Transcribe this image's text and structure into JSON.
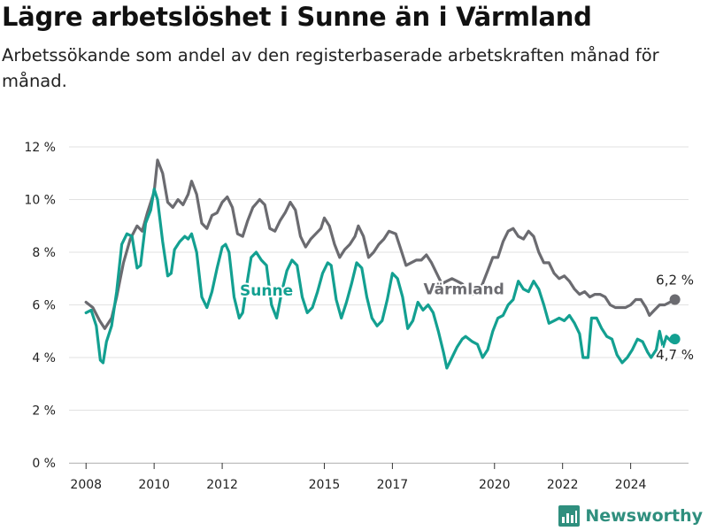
{
  "title": "Lägre arbetslöshet i Sunne än i Värmland",
  "subtitle": "Arbetssökande som andel av den registerbaserade arbetskraften månad för månad.",
  "brand": {
    "name": "Newsworthy",
    "icon": "newsworthy-chart-icon",
    "color": "#2f8f7e"
  },
  "chart_data": {
    "type": "line",
    "title": "Lägre arbetslöshet i Sunne än i Värmland",
    "subtitle": "Arbetssökande som andel av den registerbaserade arbetskraften månad för månad.",
    "xlabel": "",
    "ylabel": "",
    "xlim": [
      2007.5,
      2025.7
    ],
    "ylim": [
      0,
      12
    ],
    "grid": true,
    "legend": "inline labels",
    "x_ticks": [
      {
        "value": 2008,
        "label": "2008"
      },
      {
        "value": 2010,
        "label": "2010"
      },
      {
        "value": 2012,
        "label": "2012"
      },
      {
        "value": 2015,
        "label": "2015"
      },
      {
        "value": 2017,
        "label": "2017"
      },
      {
        "value": 2020,
        "label": "2020"
      },
      {
        "value": 2022,
        "label": "2022"
      },
      {
        "value": 2024,
        "label": "2024"
      }
    ],
    "y_ticks": [
      {
        "value": 0,
        "label": "0 %"
      },
      {
        "value": 2,
        "label": "2 %"
      },
      {
        "value": 4,
        "label": "4 %"
      },
      {
        "value": 6,
        "label": "6 %"
      },
      {
        "value": 8,
        "label": "8 %"
      },
      {
        "value": 10,
        "label": "10 %"
      },
      {
        "value": 12,
        "label": "12 %"
      }
    ],
    "series": [
      {
        "name": "Värmland",
        "color": "#6b6b70",
        "last_label": "6,2 %",
        "points": [
          [
            2008.0,
            6.1
          ],
          [
            2008.2,
            5.9
          ],
          [
            2008.4,
            5.4
          ],
          [
            2008.55,
            5.1
          ],
          [
            2008.75,
            5.5
          ],
          [
            2008.9,
            6.3
          ],
          [
            2009.1,
            7.6
          ],
          [
            2009.3,
            8.5
          ],
          [
            2009.5,
            9.0
          ],
          [
            2009.65,
            8.8
          ],
          [
            2009.8,
            9.5
          ],
          [
            2010.0,
            10.3
          ],
          [
            2010.1,
            11.5
          ],
          [
            2010.25,
            11.0
          ],
          [
            2010.4,
            9.9
          ],
          [
            2010.55,
            9.7
          ],
          [
            2010.7,
            10.0
          ],
          [
            2010.85,
            9.8
          ],
          [
            2011.0,
            10.2
          ],
          [
            2011.1,
            10.7
          ],
          [
            2011.25,
            10.2
          ],
          [
            2011.4,
            9.1
          ],
          [
            2011.55,
            8.9
          ],
          [
            2011.7,
            9.4
          ],
          [
            2011.85,
            9.5
          ],
          [
            2012.0,
            9.9
          ],
          [
            2012.15,
            10.1
          ],
          [
            2012.3,
            9.7
          ],
          [
            2012.45,
            8.7
          ],
          [
            2012.6,
            8.6
          ],
          [
            2012.75,
            9.2
          ],
          [
            2012.9,
            9.7
          ],
          [
            2013.1,
            10.0
          ],
          [
            2013.25,
            9.8
          ],
          [
            2013.4,
            8.9
          ],
          [
            2013.55,
            8.8
          ],
          [
            2013.7,
            9.2
          ],
          [
            2013.85,
            9.5
          ],
          [
            2014.0,
            9.9
          ],
          [
            2014.15,
            9.6
          ],
          [
            2014.3,
            8.6
          ],
          [
            2014.45,
            8.2
          ],
          [
            2014.6,
            8.5
          ],
          [
            2014.75,
            8.7
          ],
          [
            2014.9,
            8.9
          ],
          [
            2015.0,
            9.3
          ],
          [
            2015.15,
            9.0
          ],
          [
            2015.3,
            8.3
          ],
          [
            2015.45,
            7.8
          ],
          [
            2015.6,
            8.1
          ],
          [
            2015.75,
            8.3
          ],
          [
            2015.9,
            8.6
          ],
          [
            2016.0,
            9.0
          ],
          [
            2016.15,
            8.6
          ],
          [
            2016.3,
            7.8
          ],
          [
            2016.45,
            8.0
          ],
          [
            2016.6,
            8.3
          ],
          [
            2016.75,
            8.5
          ],
          [
            2016.9,
            8.8
          ],
          [
            2017.1,
            8.7
          ],
          [
            2017.25,
            8.1
          ],
          [
            2017.4,
            7.5
          ],
          [
            2017.55,
            7.6
          ],
          [
            2017.7,
            7.7
          ],
          [
            2017.85,
            7.7
          ],
          [
            2018.0,
            7.9
          ],
          [
            2018.15,
            7.6
          ],
          [
            2018.3,
            7.2
          ],
          [
            2018.45,
            6.8
          ],
          [
            2018.6,
            6.9
          ],
          [
            2018.75,
            7.0
          ],
          [
            2018.9,
            6.9
          ],
          [
            2019.05,
            6.8
          ],
          [
            2019.2,
            6.6
          ],
          [
            2019.35,
            6.4
          ],
          [
            2019.5,
            6.5
          ],
          [
            2019.65,
            6.8
          ],
          [
            2019.8,
            7.3
          ],
          [
            2019.95,
            7.8
          ],
          [
            2020.1,
            7.8
          ],
          [
            2020.25,
            8.4
          ],
          [
            2020.4,
            8.8
          ],
          [
            2020.55,
            8.9
          ],
          [
            2020.7,
            8.6
          ],
          [
            2020.85,
            8.5
          ],
          [
            2021.0,
            8.8
          ],
          [
            2021.15,
            8.6
          ],
          [
            2021.3,
            8.0
          ],
          [
            2021.45,
            7.6
          ],
          [
            2021.6,
            7.6
          ],
          [
            2021.75,
            7.2
          ],
          [
            2021.9,
            7.0
          ],
          [
            2022.05,
            7.1
          ],
          [
            2022.2,
            6.9
          ],
          [
            2022.35,
            6.6
          ],
          [
            2022.5,
            6.4
          ],
          [
            2022.65,
            6.5
          ],
          [
            2022.8,
            6.3
          ],
          [
            2022.95,
            6.4
          ],
          [
            2023.1,
            6.4
          ],
          [
            2023.25,
            6.3
          ],
          [
            2023.4,
            6.0
          ],
          [
            2023.55,
            5.9
          ],
          [
            2023.7,
            5.9
          ],
          [
            2023.85,
            5.9
          ],
          [
            2024.0,
            6.0
          ],
          [
            2024.15,
            6.2
          ],
          [
            2024.3,
            6.2
          ],
          [
            2024.45,
            5.9
          ],
          [
            2024.55,
            5.6
          ],
          [
            2024.7,
            5.8
          ],
          [
            2024.85,
            6.0
          ],
          [
            2025.0,
            6.0
          ],
          [
            2025.15,
            6.1
          ],
          [
            2025.3,
            6.2
          ]
        ]
      },
      {
        "name": "Sunne",
        "color": "#13a091",
        "last_label": "4,7 %",
        "points": [
          [
            2008.0,
            5.7
          ],
          [
            2008.15,
            5.8
          ],
          [
            2008.3,
            5.2
          ],
          [
            2008.42,
            3.9
          ],
          [
            2008.5,
            3.8
          ],
          [
            2008.6,
            4.6
          ],
          [
            2008.75,
            5.2
          ],
          [
            2008.9,
            6.5
          ],
          [
            2009.05,
            8.3
          ],
          [
            2009.2,
            8.7
          ],
          [
            2009.35,
            8.6
          ],
          [
            2009.5,
            7.4
          ],
          [
            2009.6,
            7.5
          ],
          [
            2009.75,
            9.1
          ],
          [
            2009.9,
            9.6
          ],
          [
            2010.0,
            10.4
          ],
          [
            2010.1,
            10.0
          ],
          [
            2010.25,
            8.4
          ],
          [
            2010.4,
            7.1
          ],
          [
            2010.5,
            7.2
          ],
          [
            2010.6,
            8.1
          ],
          [
            2010.75,
            8.4
          ],
          [
            2010.9,
            8.6
          ],
          [
            2011.0,
            8.5
          ],
          [
            2011.1,
            8.7
          ],
          [
            2011.25,
            8.0
          ],
          [
            2011.4,
            6.3
          ],
          [
            2011.55,
            5.9
          ],
          [
            2011.7,
            6.5
          ],
          [
            2011.85,
            7.4
          ],
          [
            2012.0,
            8.2
          ],
          [
            2012.1,
            8.3
          ],
          [
            2012.2,
            8.0
          ],
          [
            2012.35,
            6.3
          ],
          [
            2012.5,
            5.5
          ],
          [
            2012.6,
            5.7
          ],
          [
            2012.75,
            7.0
          ],
          [
            2012.85,
            7.8
          ],
          [
            2013.0,
            8.0
          ],
          [
            2013.15,
            7.7
          ],
          [
            2013.3,
            7.5
          ],
          [
            2013.45,
            6.0
          ],
          [
            2013.6,
            5.5
          ],
          [
            2013.75,
            6.5
          ],
          [
            2013.9,
            7.3
          ],
          [
            2014.05,
            7.7
          ],
          [
            2014.2,
            7.5
          ],
          [
            2014.35,
            6.3
          ],
          [
            2014.5,
            5.7
          ],
          [
            2014.65,
            5.9
          ],
          [
            2014.8,
            6.5
          ],
          [
            2014.95,
            7.2
          ],
          [
            2015.1,
            7.6
          ],
          [
            2015.2,
            7.5
          ],
          [
            2015.35,
            6.2
          ],
          [
            2015.5,
            5.5
          ],
          [
            2015.65,
            6.1
          ],
          [
            2015.8,
            6.8
          ],
          [
            2015.95,
            7.6
          ],
          [
            2016.1,
            7.4
          ],
          [
            2016.25,
            6.3
          ],
          [
            2016.4,
            5.5
          ],
          [
            2016.55,
            5.2
          ],
          [
            2016.7,
            5.4
          ],
          [
            2016.85,
            6.2
          ],
          [
            2017.0,
            7.2
          ],
          [
            2017.15,
            7.0
          ],
          [
            2017.3,
            6.3
          ],
          [
            2017.45,
            5.1
          ],
          [
            2017.6,
            5.4
          ],
          [
            2017.75,
            6.1
          ],
          [
            2017.9,
            5.8
          ],
          [
            2018.05,
            6.0
          ],
          [
            2018.2,
            5.7
          ],
          [
            2018.35,
            5.0
          ],
          [
            2018.5,
            4.2
          ],
          [
            2018.6,
            3.6
          ],
          [
            2018.75,
            4.0
          ],
          [
            2018.9,
            4.4
          ],
          [
            2019.05,
            4.7
          ],
          [
            2019.15,
            4.8
          ],
          [
            2019.35,
            4.6
          ],
          [
            2019.5,
            4.5
          ],
          [
            2019.65,
            4.0
          ],
          [
            2019.8,
            4.3
          ],
          [
            2019.95,
            5.0
          ],
          [
            2020.1,
            5.5
          ],
          [
            2020.25,
            5.6
          ],
          [
            2020.4,
            6.0
          ],
          [
            2020.55,
            6.2
          ],
          [
            2020.7,
            6.9
          ],
          [
            2020.85,
            6.6
          ],
          [
            2021.0,
            6.5
          ],
          [
            2021.15,
            6.9
          ],
          [
            2021.3,
            6.6
          ],
          [
            2021.45,
            6.0
          ],
          [
            2021.6,
            5.3
          ],
          [
            2021.75,
            5.4
          ],
          [
            2021.9,
            5.5
          ],
          [
            2022.05,
            5.4
          ],
          [
            2022.2,
            5.6
          ],
          [
            2022.35,
            5.3
          ],
          [
            2022.5,
            4.9
          ],
          [
            2022.6,
            4.0
          ],
          [
            2022.75,
            4.0
          ],
          [
            2022.85,
            5.5
          ],
          [
            2023.0,
            5.5
          ],
          [
            2023.15,
            5.1
          ],
          [
            2023.3,
            4.8
          ],
          [
            2023.45,
            4.7
          ],
          [
            2023.6,
            4.1
          ],
          [
            2023.75,
            3.8
          ],
          [
            2023.9,
            4.0
          ],
          [
            2024.05,
            4.3
          ],
          [
            2024.2,
            4.7
          ],
          [
            2024.35,
            4.6
          ],
          [
            2024.5,
            4.2
          ],
          [
            2024.6,
            4.0
          ],
          [
            2024.75,
            4.3
          ],
          [
            2024.85,
            5.0
          ],
          [
            2024.95,
            4.4
          ],
          [
            2025.05,
            4.8
          ],
          [
            2025.2,
            4.6
          ],
          [
            2025.3,
            4.7
          ]
        ]
      }
    ]
  }
}
